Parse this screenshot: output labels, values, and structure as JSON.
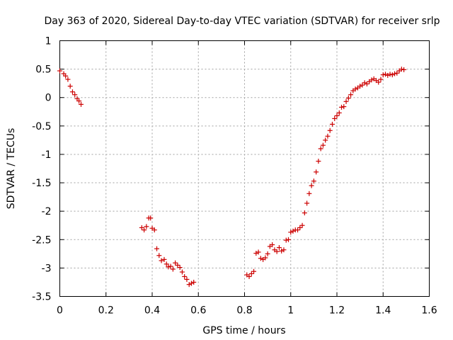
{
  "chart_data": {
    "type": "scatter",
    "title": "Day 363 of 2020, Sidereal Day-to-day VTEC variation (SDTVAR) for receiver srlp",
    "xlabel": "GPS time / hours",
    "ylabel": "SDTVAR / TECUs",
    "xlim": [
      0,
      1.6
    ],
    "ylim": [
      -3.5,
      1
    ],
    "xticks": [
      0,
      0.2,
      0.4,
      0.6,
      0.8,
      1,
      1.2,
      1.4,
      1.6
    ],
    "xtick_labels": [
      "0",
      "0.2",
      "0.4",
      "0.6",
      "0.8",
      "1",
      "1.2",
      "1.4",
      "1.6"
    ],
    "yticks": [
      1,
      0.5,
      0,
      -0.5,
      -1,
      -1.5,
      -2,
      -2.5,
      -3,
      -3.5
    ],
    "ytick_labels": [
      "1",
      "0.5",
      "0",
      "-0.5",
      "-1",
      "-1.5",
      "-2",
      "-2.5",
      "-3",
      "-3.5"
    ],
    "grid": true,
    "marker": "plus",
    "color": "#cc0000",
    "series": [
      {
        "name": "SDTVAR",
        "x": [
          0.0,
          0.017,
          0.025,
          0.035,
          0.045,
          0.055,
          0.065,
          0.075,
          0.083,
          0.092,
          0.355,
          0.365,
          0.375,
          0.385,
          0.393,
          0.4,
          0.41,
          0.42,
          0.43,
          0.44,
          0.452,
          0.462,
          0.47,
          0.48,
          0.49,
          0.5,
          0.51,
          0.52,
          0.53,
          0.54,
          0.55,
          0.56,
          0.57,
          0.58,
          0.81,
          0.82,
          0.83,
          0.84,
          0.85,
          0.86,
          0.87,
          0.88,
          0.89,
          0.9,
          0.91,
          0.92,
          0.93,
          0.94,
          0.95,
          0.96,
          0.97,
          0.98,
          0.99,
          1.0,
          1.01,
          1.02,
          1.03,
          1.04,
          1.05,
          1.06,
          1.07,
          1.08,
          1.09,
          1.1,
          1.11,
          1.12,
          1.13,
          1.14,
          1.15,
          1.16,
          1.17,
          1.18,
          1.19,
          1.2,
          1.21,
          1.22,
          1.23,
          1.24,
          1.25,
          1.26,
          1.27,
          1.28,
          1.29,
          1.3,
          1.31,
          1.32,
          1.33,
          1.34,
          1.35,
          1.36,
          1.37,
          1.38,
          1.39,
          1.4,
          1.41,
          1.42,
          1.43,
          1.44,
          1.45,
          1.46,
          1.47,
          1.48,
          1.49
        ],
        "y": [
          0.47,
          0.42,
          0.38,
          0.32,
          0.2,
          0.1,
          0.05,
          -0.02,
          -0.06,
          -0.12,
          -2.29,
          -2.33,
          -2.27,
          -2.12,
          -2.12,
          -2.3,
          -2.33,
          -2.66,
          -2.78,
          -2.87,
          -2.85,
          -2.93,
          -2.98,
          -2.97,
          -3.02,
          -2.91,
          -2.95,
          -2.99,
          -3.07,
          -3.15,
          -3.2,
          -3.29,
          -3.27,
          -3.25,
          -3.12,
          -3.15,
          -3.1,
          -3.06,
          -2.74,
          -2.72,
          -2.83,
          -2.85,
          -2.82,
          -2.75,
          -2.62,
          -2.59,
          -2.68,
          -2.71,
          -2.64,
          -2.7,
          -2.68,
          -2.51,
          -2.5,
          -2.37,
          -2.35,
          -2.33,
          -2.33,
          -2.29,
          -2.25,
          -2.03,
          -1.86,
          -1.69,
          -1.55,
          -1.47,
          -1.31,
          -1.12,
          -0.9,
          -0.84,
          -0.75,
          -0.68,
          -0.58,
          -0.47,
          -0.37,
          -0.32,
          -0.27,
          -0.17,
          -0.16,
          -0.07,
          -0.01,
          0.05,
          0.12,
          0.15,
          0.17,
          0.2,
          0.22,
          0.26,
          0.24,
          0.28,
          0.31,
          0.33,
          0.3,
          0.27,
          0.32,
          0.4,
          0.41,
          0.39,
          0.41,
          0.4,
          0.42,
          0.43,
          0.47,
          0.5,
          0.49
        ]
      }
    ]
  }
}
